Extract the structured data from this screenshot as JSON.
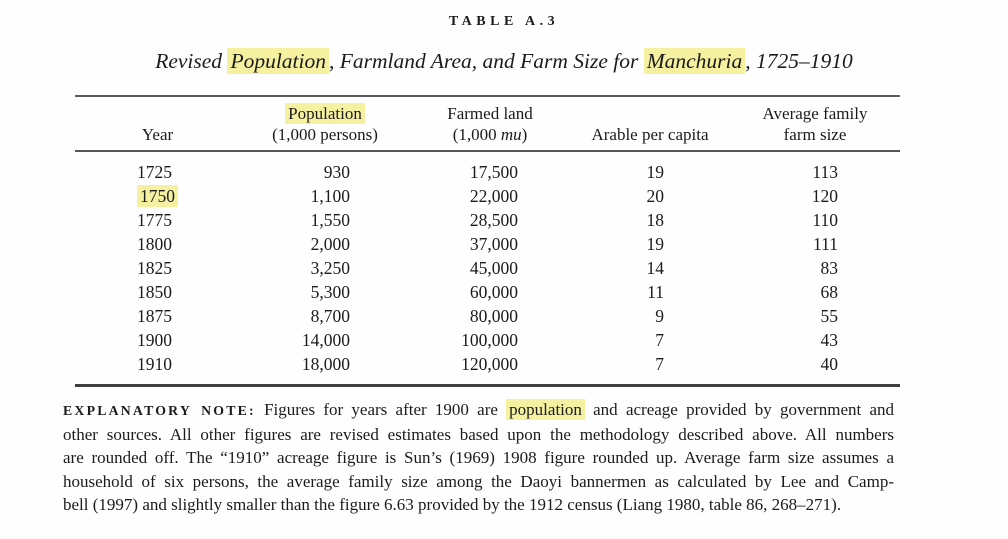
{
  "page": {
    "highlight_color": "#f6f1a0",
    "text_color": "#1b1b1b"
  },
  "caption": {
    "label": "TABLE A.3",
    "title_segments": [
      {
        "text": "Revised "
      },
      {
        "text": "Population",
        "highlight": true
      },
      {
        "text": ", Farmland Area, and Farm Size for "
      },
      {
        "text": "Manchuria",
        "highlight": true
      },
      {
        "text": ", 1725–1910"
      }
    ]
  },
  "table": {
    "columns": [
      {
        "name": "year",
        "header_lines": [
          [
            {
              "text": "Year"
            }
          ]
        ]
      },
      {
        "name": "population",
        "header_lines": [
          [
            {
              "text": "Population",
              "highlight": true
            }
          ],
          [
            {
              "text": "(1,000 persons)"
            }
          ]
        ]
      },
      {
        "name": "farmed-land",
        "header_lines": [
          [
            {
              "text": "Farmed land"
            }
          ],
          [
            {
              "text": "(1,000 "
            },
            {
              "text": "mu",
              "italic": true
            },
            {
              "text": ")"
            }
          ]
        ]
      },
      {
        "name": "arable-per-capita",
        "header_lines": [
          [
            {
              "text": "Arable per capita"
            }
          ]
        ]
      },
      {
        "name": "avg-family-farm-size",
        "header_lines": [
          [
            {
              "text": "Average family"
            }
          ],
          [
            {
              "text": "farm size"
            }
          ]
        ]
      }
    ],
    "rows": [
      {
        "cells": [
          {
            "text": "1725"
          },
          {
            "text": "930"
          },
          {
            "text": "17,500"
          },
          {
            "text": "19"
          },
          {
            "text": "113"
          }
        ]
      },
      {
        "cells": [
          {
            "text": "1750",
            "highlight": true
          },
          {
            "text": "1,100"
          },
          {
            "text": "22,000"
          },
          {
            "text": "20"
          },
          {
            "text": "120"
          }
        ]
      },
      {
        "cells": [
          {
            "text": "1775"
          },
          {
            "text": "1,550"
          },
          {
            "text": "28,500"
          },
          {
            "text": "18"
          },
          {
            "text": "110"
          }
        ]
      },
      {
        "cells": [
          {
            "text": "1800"
          },
          {
            "text": "2,000"
          },
          {
            "text": "37,000"
          },
          {
            "text": "19"
          },
          {
            "text": "111"
          }
        ]
      },
      {
        "cells": [
          {
            "text": "1825"
          },
          {
            "text": "3,250"
          },
          {
            "text": "45,000"
          },
          {
            "text": "14"
          },
          {
            "text": "83"
          }
        ]
      },
      {
        "cells": [
          {
            "text": "1850"
          },
          {
            "text": "5,300"
          },
          {
            "text": "60,000"
          },
          {
            "text": "11"
          },
          {
            "text": "68"
          }
        ]
      },
      {
        "cells": [
          {
            "text": "1875"
          },
          {
            "text": "8,700"
          },
          {
            "text": "80,000"
          },
          {
            "text": "9"
          },
          {
            "text": "55"
          }
        ]
      },
      {
        "cells": [
          {
            "text": "1900"
          },
          {
            "text": "14,000"
          },
          {
            "text": "100,000"
          },
          {
            "text": "7"
          },
          {
            "text": "43"
          }
        ]
      },
      {
        "cells": [
          {
            "text": "1910"
          },
          {
            "text": "18,000"
          },
          {
            "text": "120,000"
          },
          {
            "text": "7"
          },
          {
            "text": "40"
          }
        ]
      }
    ]
  },
  "note": {
    "lines": [
      [
        {
          "text": "EXPLANATORY NOTE:",
          "sc": true
        },
        {
          "text": " Figures for years after 1900 are "
        },
        {
          "text": "population",
          "highlight": true
        },
        {
          "text": " and acreage provided by government and"
        }
      ],
      [
        {
          "text": "other sources. All other figures are revised estimates based upon the methodology described above. All numbers"
        }
      ],
      [
        {
          "text": "are rounded off. The “1910” acreage figure is Sun’s (1969) 1908 figure rounded up. Average farm size assumes a"
        }
      ],
      [
        {
          "text": "household of six persons, the average family size among the Daoyi bannermen as calculated by Lee and Camp-"
        }
      ],
      [
        {
          "text": "bell (1997) and slightly smaller than the figure 6.63 provided by the 1912 census (Liang 1980, table 86, 268–271)."
        }
      ]
    ]
  }
}
